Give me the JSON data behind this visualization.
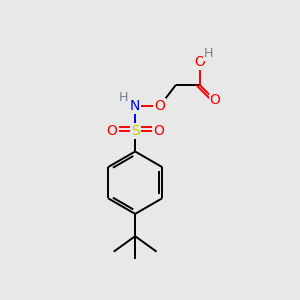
{
  "background_color": "#e8e8e8",
  "atom_colors": {
    "C": "#000000",
    "H": "#708090",
    "N": "#0000ff",
    "O": "#ff0000",
    "S": "#cccc00"
  },
  "figsize": [
    3.0,
    3.0
  ],
  "dpi": 100,
  "xlim": [
    0,
    10
  ],
  "ylim": [
    0,
    10
  ],
  "bond_lw": 1.4,
  "font_size": 10,
  "font_size_h": 9
}
